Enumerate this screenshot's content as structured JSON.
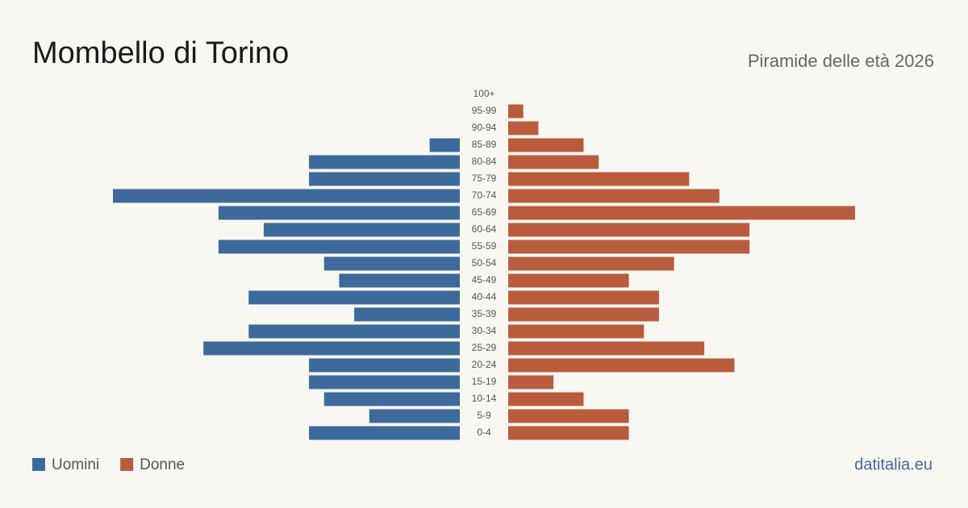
{
  "chart_data": {
    "type": "pyramid",
    "title": "Mombello di Torino",
    "subtitle": "Piramide delle età 2026",
    "source": "datitalia.eu",
    "categories": [
      "100+",
      "95-99",
      "90-94",
      "85-89",
      "80-84",
      "75-79",
      "70-74",
      "65-69",
      "60-64",
      "55-59",
      "50-54",
      "45-49",
      "40-44",
      "35-39",
      "30-34",
      "25-29",
      "20-24",
      "15-19",
      "10-14",
      "5-9",
      "0-4"
    ],
    "series": [
      {
        "name": "Uomini",
        "color": "#3d6a9a",
        "values": [
          0,
          0,
          0,
          2,
          10,
          10,
          23,
          16,
          13,
          16,
          9,
          8,
          14,
          7,
          14,
          17,
          10,
          10,
          9,
          6,
          10
        ]
      },
      {
        "name": "Donne",
        "color": "#b95c3d",
        "values": [
          0,
          1,
          2,
          5,
          6,
          12,
          14,
          23,
          16,
          16,
          11,
          8,
          10,
          10,
          9,
          13,
          15,
          3,
          5,
          8,
          8
        ]
      }
    ]
  }
}
